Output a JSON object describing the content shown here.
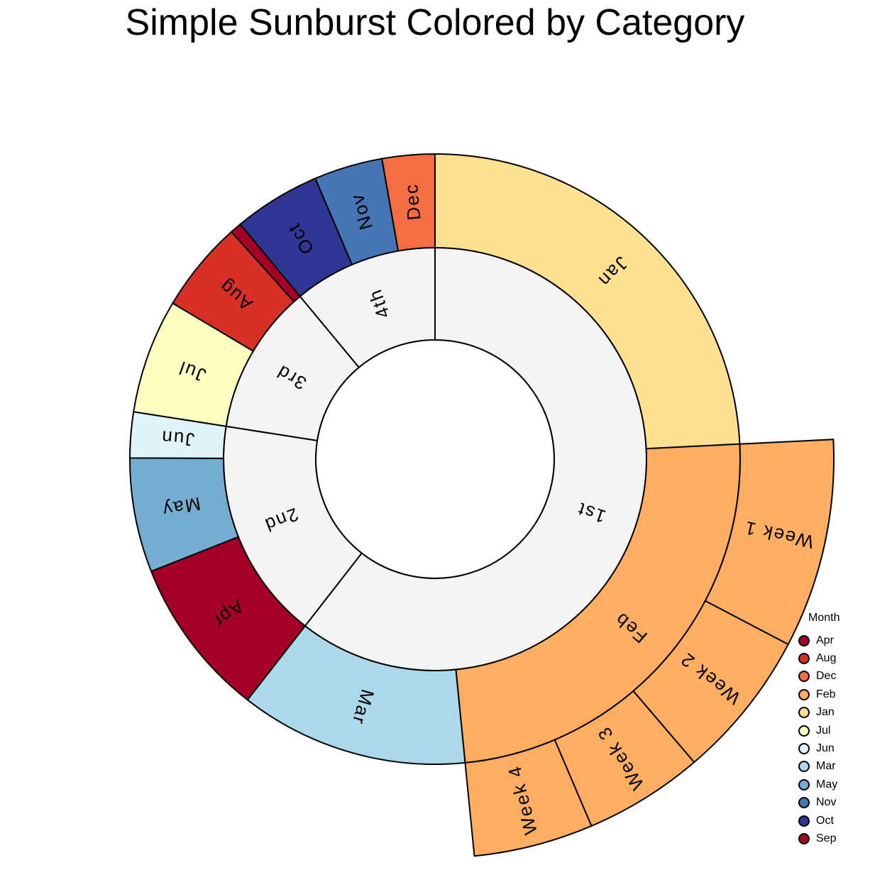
{
  "chart_data": {
    "type": "sunburst",
    "title": "Simple Sunburst Colored by Category",
    "legend_title": "Month",
    "legend": [
      {
        "label": "Apr",
        "color": "#a50026"
      },
      {
        "label": "Aug",
        "color": "#d73027"
      },
      {
        "label": "Dec",
        "color": "#f46d43"
      },
      {
        "label": "Feb",
        "color": "#fdae61"
      },
      {
        "label": "Jan",
        "color": "#fee090"
      },
      {
        "label": "Jul",
        "color": "#ffffbf"
      },
      {
        "label": "Jun",
        "color": "#e0f3f8"
      },
      {
        "label": "Mar",
        "color": "#abd9e9"
      },
      {
        "label": "May",
        "color": "#74add1"
      },
      {
        "label": "Nov",
        "color": "#4575b4"
      },
      {
        "label": "Oct",
        "color": "#313695"
      },
      {
        "label": "Sep",
        "color": "#a50026"
      }
    ],
    "quarters": [
      {
        "label": "1st",
        "color": "#f4f4f4",
        "months": [
          {
            "label": "Jan",
            "value": 20,
            "color": "#fee090",
            "weeks": []
          },
          {
            "label": "Feb",
            "value": 20,
            "color": "#fdae61",
            "weeks": [
              {
                "label": "Week 1",
                "value": 7
              },
              {
                "label": "Week 2",
                "value": 5
              },
              {
                "label": "Week 3",
                "value": 4
              },
              {
                "label": "Week 4",
                "value": 4
              }
            ]
          },
          {
            "label": "Mar",
            "value": 10,
            "color": "#abd9e9",
            "weeks": []
          }
        ]
      },
      {
        "label": "2nd",
        "color": "#f4f4f4",
        "months": [
          {
            "label": "Apr",
            "value": 7,
            "color": "#a50026",
            "weeks": []
          },
          {
            "label": "May",
            "value": 5,
            "color": "#74add1",
            "weeks": []
          },
          {
            "label": "Jun",
            "value": 2,
            "color": "#e0f3f8",
            "weeks": []
          }
        ]
      },
      {
        "label": "3rd",
        "color": "#f4f4f4",
        "months": [
          {
            "label": "Jul",
            "value": 5,
            "color": "#ffffbf",
            "weeks": []
          },
          {
            "label": "Aug",
            "value": 4,
            "color": "#d73027",
            "weeks": []
          },
          {
            "label": "Sep",
            "value": 0.5,
            "color": "#a50026",
            "weeks": []
          }
        ]
      },
      {
        "label": "4th",
        "color": "#f4f4f4",
        "months": [
          {
            "label": "Oct",
            "value": 3.8,
            "color": "#313695",
            "weeks": []
          },
          {
            "label": "Nov",
            "value": 3,
            "color": "#4575b4",
            "weeks": []
          },
          {
            "label": "Dec",
            "value": 2.3,
            "color": "#f46d43",
            "weeks": []
          }
        ]
      }
    ]
  }
}
